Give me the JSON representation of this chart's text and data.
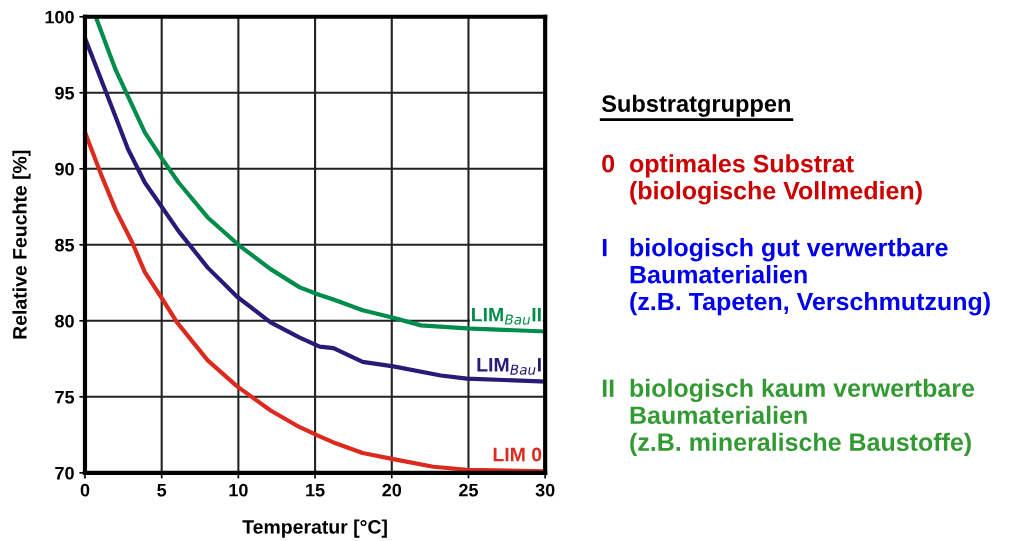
{
  "chart_data": {
    "type": "line",
    "xlabel": "Temperatur [°C]",
    "ylabel": "Relative Feuchte [%]",
    "xlim": [
      0,
      30
    ],
    "xticks": [
      0,
      5,
      10,
      15,
      20,
      25,
      30
    ],
    "ylim": [
      70,
      100
    ],
    "yticks": [
      70,
      75,
      80,
      85,
      90,
      95,
      100
    ],
    "grid": true,
    "legend": false,
    "series": [
      {
        "name": "LIM$_{Bau}$II",
        "color": "#008c4a",
        "x": [
          0.7,
          2,
          3.9,
          5,
          6.1,
          8,
          10,
          12.1,
          14,
          15.3,
          16.2,
          18.1,
          20.1,
          21.9,
          24.9,
          30
        ],
        "values": [
          100,
          96.5,
          92.4,
          90.7,
          89.1,
          86.8,
          85,
          83.4,
          82.2,
          81.7,
          81.4,
          80.7,
          80.2,
          79.7,
          79.5,
          79.3
        ]
      },
      {
        "name": "LIM$_{Bau}$I",
        "color": "#2a1a78",
        "x": [
          0,
          2,
          2.8,
          3.9,
          5,
          6.1,
          8,
          9.9,
          12.1,
          14,
          15.3,
          16.2,
          18.1,
          20.1,
          23.2,
          24.9,
          30
        ],
        "values": [
          98.6,
          93.4,
          91.3,
          89.1,
          87.5,
          85.9,
          83.5,
          81.6,
          79.9,
          78.9,
          78.3,
          78.2,
          77.3,
          77.0,
          76.4,
          76.2,
          76.0
        ]
      },
      {
        "name": "LIM 0",
        "color": "#dd2a1e",
        "x": [
          0,
          1.1,
          2,
          3.1,
          3.9,
          5,
          6,
          8,
          9.9,
          12.1,
          14,
          15.3,
          16.2,
          18.1,
          20.1,
          22.7,
          24.9,
          30
        ],
        "values": [
          92.4,
          89.5,
          87.3,
          85.1,
          83.2,
          81.5,
          79.9,
          77.4,
          75.7,
          74.1,
          73.0,
          72.4,
          72.0,
          71.3,
          70.9,
          70.4,
          70.2,
          70.1
        ]
      }
    ],
    "annotations": [
      "Substratgruppen",
      "0  optimales Substrat\n    (biologische Vollmedien)",
      "I   biologisch gut verwertbare\n    Baumaterialien\n    (z.B. Tapeten, Verschmutzung)",
      "II  biologisch kaum verwertbare\n    Baumaterialien\n    (z.B. mineralische Baustoffe)"
    ]
  }
}
